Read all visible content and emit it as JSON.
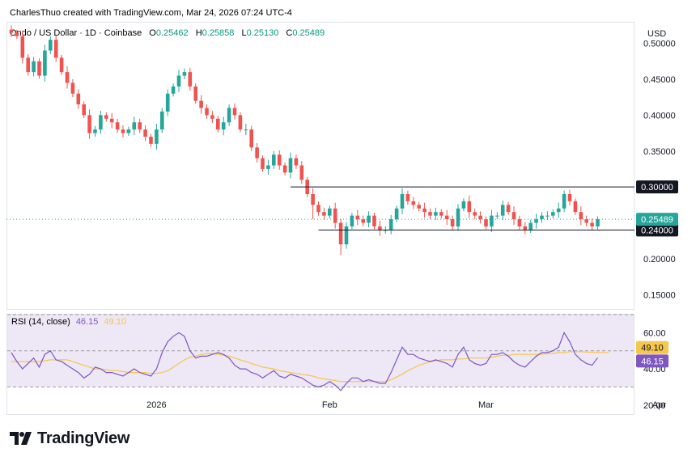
{
  "header": {
    "credit": "CharlesThuo created with TradingView.com, Mar 24, 2026 07:24 UTC-4",
    "symbol": "Ondo / US Dollar · 1D · Coinbase",
    "o_label": "O",
    "o_value": "0.25462",
    "h_label": "H",
    "h_value": "0.25858",
    "l_label": "L",
    "l_value": "0.25130",
    "c_label": "C",
    "c_value": "0.25489",
    "currency": "USD"
  },
  "brand": {
    "name": "TradingView"
  },
  "colors": {
    "up": "#26a69a",
    "down": "#ef5350",
    "rsi_line": "#7e57c2",
    "rsi_ma": "#f7c64c",
    "rsi_band": "#ede7f6"
  },
  "chart_data": {
    "type": "candlestick",
    "y_range": [
      0.13,
      0.53
    ],
    "y_ticks": [
      "0.50000",
      "0.45000",
      "0.40000",
      "0.35000",
      "0.30000",
      "0.25000",
      "0.20000",
      "0.15000"
    ],
    "x_ticks": [
      {
        "label": "2026",
        "index": 26
      },
      {
        "label": "Feb",
        "index": 57
      },
      {
        "label": "Mar",
        "index": 85
      },
      {
        "label": "Apr",
        "index": 116
      }
    ],
    "last_price": "0.25489",
    "levels": [
      {
        "label": "0.30000",
        "value": 0.3,
        "from_index": 50
      },
      {
        "label": "0.24000",
        "value": 0.24,
        "from_index": 55
      }
    ],
    "closes": [
      0.515,
      0.51,
      0.48,
      0.46,
      0.475,
      0.455,
      0.49,
      0.505,
      0.48,
      0.46,
      0.445,
      0.43,
      0.415,
      0.4,
      0.375,
      0.38,
      0.4,
      0.395,
      0.39,
      0.38,
      0.375,
      0.38,
      0.39,
      0.38,
      0.37,
      0.36,
      0.38,
      0.405,
      0.43,
      0.44,
      0.455,
      0.46,
      0.44,
      0.42,
      0.41,
      0.4,
      0.395,
      0.38,
      0.39,
      0.41,
      0.4,
      0.38,
      0.38,
      0.355,
      0.34,
      0.325,
      0.33,
      0.345,
      0.33,
      0.32,
      0.34,
      0.33,
      0.31,
      0.29,
      0.275,
      0.265,
      0.26,
      0.27,
      0.25,
      0.22,
      0.245,
      0.26,
      0.255,
      0.25,
      0.26,
      0.245,
      0.24,
      0.24,
      0.255,
      0.27,
      0.29,
      0.28,
      0.275,
      0.27,
      0.265,
      0.26,
      0.265,
      0.26,
      0.255,
      0.245,
      0.27,
      0.28,
      0.265,
      0.26,
      0.255,
      0.245,
      0.26,
      0.26,
      0.275,
      0.265,
      0.255,
      0.245,
      0.24,
      0.25,
      0.255,
      0.26,
      0.26,
      0.265,
      0.27,
      0.29,
      0.28,
      0.265,
      0.255,
      0.25,
      0.245,
      0.255
    ],
    "rsi": {
      "title": "RSI (14, close)",
      "value": "46.15",
      "ma": "49.10",
      "y_range": [
        15,
        70
      ],
      "ticks": [
        "60.00",
        "40.00",
        "20.00"
      ],
      "band": [
        30,
        70
      ],
      "values": [
        49,
        44,
        40,
        43,
        46,
        41,
        48,
        50,
        45,
        44,
        42,
        40,
        38,
        35,
        37,
        41,
        40,
        38,
        38,
        37,
        36,
        38,
        40,
        38,
        37,
        36,
        40,
        49,
        55,
        58,
        60,
        58,
        50,
        46,
        47,
        47,
        48,
        49,
        48,
        46,
        42,
        40,
        40,
        38,
        37,
        35,
        37,
        39,
        36,
        35,
        37,
        36,
        35,
        33,
        31,
        30,
        31,
        33,
        31,
        28,
        32,
        35,
        35,
        33,
        34,
        33,
        32,
        32,
        38,
        45,
        52,
        48,
        48,
        46,
        45,
        44,
        45,
        44,
        43,
        41,
        48,
        52,
        45,
        43,
        42,
        43,
        48,
        48,
        49,
        47,
        44,
        42,
        41,
        44,
        47,
        49,
        49,
        50,
        52,
        60,
        55,
        48,
        45,
        43,
        42,
        46.15
      ],
      "ma_values": [
        44,
        44,
        44,
        44,
        44,
        44,
        44.5,
        45,
        45,
        45,
        45,
        44,
        43,
        42,
        41,
        40,
        40,
        39.5,
        39,
        39,
        38.5,
        38,
        38,
        38,
        38,
        37.5,
        37.5,
        38,
        39,
        41,
        43,
        45,
        46.5,
        47,
        48,
        48.5,
        48.5,
        48,
        47.5,
        47,
        46,
        45,
        44,
        43,
        42,
        41,
        40.5,
        40,
        39,
        38.5,
        38,
        37.5,
        37,
        36.5,
        36,
        35,
        34.5,
        34,
        33.5,
        33,
        33,
        33,
        33,
        33,
        33,
        33,
        33,
        33,
        34,
        35.5,
        37,
        39,
        40.5,
        42,
        43,
        44,
        44.5,
        45,
        45,
        45,
        45.5,
        45.5,
        46,
        46,
        46,
        46,
        46.5,
        47,
        47.5,
        47.5,
        48,
        48,
        48,
        48,
        48,
        48,
        48.5,
        48.5,
        49,
        49,
        49.5,
        49.5,
        49.5,
        49.3,
        49.2,
        49.1,
        49.1,
        49.1
      ]
    }
  }
}
